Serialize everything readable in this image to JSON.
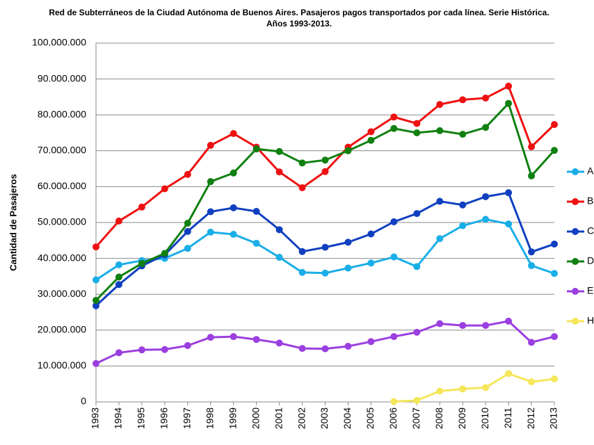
{
  "chart_data": {
    "type": "line",
    "title": "Red de Subterráneos de la Ciudad Autónoma de Buenos Aires. Pasajeros pagos transportados por cada línea. Serie Histórica. Años 1993-2013.",
    "y_label": "Cantidad de Pasajeros",
    "categories": [
      "1993",
      "1994",
      "1995",
      "1996",
      "1997",
      "1998",
      "1999",
      "2000",
      "2001",
      "2002",
      "2003",
      "2004",
      "2005",
      "2006",
      "2007",
      "2008",
      "2009",
      "2010",
      "2011",
      "2012",
      "2013"
    ],
    "ylim": [
      0,
      100000000
    ],
    "yticks": [
      0,
      {
        "value": 10000000,
        "label": "10.000.000"
      },
      {
        "value": 20000000,
        "label": "20.000.000"
      },
      {
        "value": 30000000,
        "label": "30.000.000"
      },
      {
        "value": 40000000,
        "label": "40.000.000"
      },
      {
        "value": 50000000,
        "label": "50.000.000"
      },
      {
        "value": 60000000,
        "label": "60.000.000"
      },
      {
        "value": 70000000,
        "label": "70.000.000"
      },
      {
        "value": 80000000,
        "label": "80.000.000"
      },
      {
        "value": 90000000,
        "label": "90.000.000"
      },
      {
        "value": 100000000,
        "label": "100.000.000"
      }
    ],
    "grid": true,
    "legend": "right",
    "series": [
      {
        "name": "A",
        "color": "#1aaee8",
        "values": [
          34000000,
          38200000,
          39400000,
          40000000,
          42800000,
          47300000,
          46700000,
          44200000,
          40300000,
          36100000,
          35900000,
          37300000,
          38700000,
          40400000,
          37700000,
          45500000,
          49100000,
          50900000,
          49600000,
          38000000,
          35800000
        ]
      },
      {
        "name": "B",
        "color": "#ee1111",
        "values": [
          43200000,
          50400000,
          54300000,
          59400000,
          63400000,
          71500000,
          74800000,
          71000000,
          64100000,
          59700000,
          64200000,
          71000000,
          75300000,
          79400000,
          77600000,
          82900000,
          84200000,
          84700000,
          88000000,
          71100000,
          77300000
        ]
      },
      {
        "name": "C",
        "color": "#1040c0",
        "values": [
          26800000,
          32700000,
          37900000,
          41000000,
          47500000,
          53000000,
          54100000,
          53100000,
          48000000,
          41900000,
          43100000,
          44500000,
          46800000,
          50200000,
          52500000,
          55900000,
          54900000,
          57200000,
          58300000,
          41800000,
          44000000
        ]
      },
      {
        "name": "D",
        "color": "#108010",
        "values": [
          28300000,
          34800000,
          38600000,
          41400000,
          49800000,
          61400000,
          63800000,
          70500000,
          69800000,
          66600000,
          67400000,
          70000000,
          72900000,
          76200000,
          75000000,
          75600000,
          74600000,
          76500000,
          83200000,
          63000000,
          70100000
        ]
      },
      {
        "name": "E",
        "color": "#9b3fe0",
        "values": [
          10700000,
          13700000,
          14500000,
          14600000,
          15700000,
          18000000,
          18200000,
          17400000,
          16400000,
          14900000,
          14800000,
          15500000,
          16800000,
          18200000,
          19400000,
          21800000,
          21300000,
          21300000,
          22500000,
          16600000,
          18200000
        ]
      },
      {
        "name": "H",
        "color": "#f5e65a",
        "values": [
          null,
          null,
          null,
          null,
          null,
          null,
          null,
          null,
          null,
          null,
          null,
          null,
          null,
          100000,
          400000,
          3000000,
          3600000,
          4000000,
          7900000,
          5600000,
          6400000
        ]
      }
    ]
  }
}
